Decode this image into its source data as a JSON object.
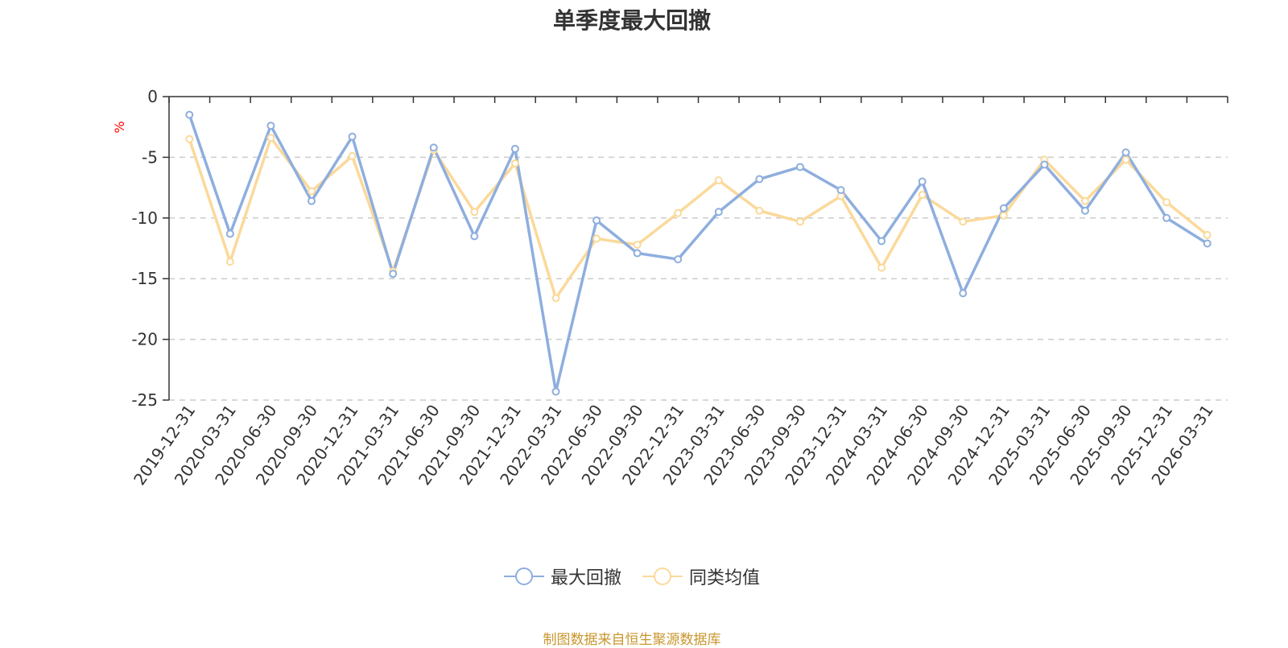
{
  "source_note": "制图数据来自恒生聚源数据库",
  "colors": {
    "series_1": "#8eaede",
    "series_2": "#fbd99a",
    "unit": "#ff0000",
    "axis": "#333333",
    "grid": "#cccccc",
    "source": "#c8962e"
  },
  "chart_data": {
    "type": "line",
    "title": "单季度最大回撤",
    "ylabel": "%",
    "xlabel": "",
    "ylim": [
      -25,
      0
    ],
    "yticks": [
      0,
      -5,
      -10,
      -15,
      -20,
      -25
    ],
    "grid": "y-dashed",
    "legend_position": "bottom-center",
    "categories": [
      "2019-12-31",
      "2020-03-31",
      "2020-06-30",
      "2020-09-30",
      "2020-12-31",
      "2021-03-31",
      "2021-06-30",
      "2021-09-30",
      "2021-12-31",
      "2022-03-31",
      "2022-06-30",
      "2022-09-30",
      "2022-12-31",
      "2023-03-31",
      "2023-06-30",
      "2023-09-30",
      "2023-12-31",
      "2024-03-31",
      "2024-06-30",
      "2024-09-30",
      "2024-12-31",
      "2025-03-31",
      "2025-06-30",
      "2025-09-30",
      "2025-12-31",
      "2026-03-31"
    ],
    "series": [
      {
        "name": "最大回撤",
        "values": [
          -1.5,
          -11.3,
          -2.4,
          -8.6,
          -3.3,
          -14.6,
          -4.2,
          -11.5,
          -4.3,
          -24.3,
          -10.2,
          -12.9,
          -13.4,
          -9.5,
          -6.8,
          -5.8,
          -7.7,
          -11.9,
          -7.0,
          -16.2,
          -9.2,
          -5.6,
          -9.4,
          -4.6,
          -10.0,
          -12.1
        ]
      },
      {
        "name": "同类均值",
        "values": [
          -3.5,
          -13.6,
          -3.4,
          -7.8,
          -4.9,
          -14.4,
          -4.4,
          -9.5,
          -5.5,
          -16.6,
          -11.7,
          -12.2,
          -9.6,
          -6.9,
          -9.4,
          -10.3,
          -8.2,
          -14.1,
          -8.1,
          -10.3,
          -9.8,
          -5.2,
          -8.6,
          -5.2,
          -8.7,
          -11.4
        ]
      }
    ]
  }
}
